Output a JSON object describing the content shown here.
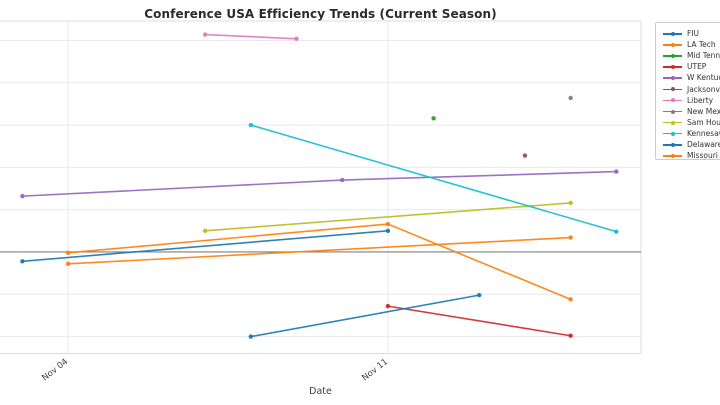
{
  "chart_data": {
    "type": "line",
    "title": "Conference USA Efficiency Trends (Current Season)",
    "xlabel": "Date",
    "ylabel": "",
    "x_axis": {
      "unit": "days_from_nov_04",
      "min": -1.49,
      "max": 12.54,
      "ticks": [
        {
          "day": 0,
          "label": "Nov 04"
        },
        {
          "day": 7,
          "label": "Nov 11"
        }
      ]
    },
    "y_axis": {
      "min": -12.0,
      "max": 27.3,
      "gridline_step": 5,
      "tick_labels_visible": false,
      "zero_line": true,
      "note": "y tick labels are cropped out of the visible image; values estimated from gridlines"
    },
    "grid": "on",
    "legend_position": "right-outside-partially-cut-off",
    "series": [
      {
        "name": "FIU",
        "color": "#1f77b4",
        "points": [
          {
            "date": "Nov 03",
            "x": -1,
            "y": -1.1
          },
          {
            "date": "Nov 11",
            "x": 7,
            "y": 2.5
          }
        ]
      },
      {
        "name": "LA Tech",
        "color": "#ff7f0e",
        "points": [
          {
            "date": "Nov 04",
            "x": 0,
            "y": -0.1
          },
          {
            "date": "Nov 11",
            "x": 7,
            "y": 3.3
          },
          {
            "date": "Nov 15",
            "x": 11,
            "y": -5.6
          }
        ]
      },
      {
        "name": "Mid Tennessee",
        "color": "#2ca02c",
        "points": [
          {
            "date": "Nov 12",
            "x": 8,
            "y": 15.8
          }
        ]
      },
      {
        "name": "UTEP",
        "color": "#d62728",
        "points": [
          {
            "date": "Nov 11",
            "x": 7,
            "y": -6.4
          },
          {
            "date": "Nov 15",
            "x": 11,
            "y": -9.9
          }
        ]
      },
      {
        "name": "W Kentucky",
        "color": "#9467bd",
        "points": [
          {
            "date": "Nov 03",
            "x": -1,
            "y": 6.6
          },
          {
            "date": "Nov 10",
            "x": 6,
            "y": 8.5
          },
          {
            "date": "Nov 16",
            "x": 12,
            "y": 9.5
          }
        ]
      },
      {
        "name": "Jacksonville St",
        "color": "#8c564b",
        "points": [
          {
            "date": "Nov 14",
            "x": 10,
            "y": 11.4
          }
        ]
      },
      {
        "name": "Liberty",
        "color": "#e377c2",
        "points": [
          {
            "date": "Nov 07",
            "x": 3,
            "y": 25.7
          },
          {
            "date": "Nov 09",
            "x": 5,
            "y": 25.2
          }
        ]
      },
      {
        "name": "New Mexico St",
        "color": "#7f7f7f",
        "points": [
          {
            "date": "Nov 15",
            "x": 11,
            "y": 18.2
          }
        ]
      },
      {
        "name": "Sam Houston",
        "color": "#bcbd22",
        "points": [
          {
            "date": "Nov 07",
            "x": 3,
            "y": 2.5
          },
          {
            "date": "Nov 15",
            "x": 11,
            "y": 5.8
          }
        ]
      },
      {
        "name": "Kennesaw St",
        "color": "#17becf",
        "points": [
          {
            "date": "Nov 08",
            "x": 4,
            "y": 15.0
          },
          {
            "date": "Nov 16",
            "x": 12,
            "y": 2.4
          }
        ]
      },
      {
        "name": "Delaware",
        "color": "#1f77b4",
        "points": [
          {
            "date": "Nov 08",
            "x": 4,
            "y": -10.0
          },
          {
            "date": "Nov 13",
            "x": 9,
            "y": -5.1
          }
        ]
      },
      {
        "name": "Missouri St",
        "color": "#ff7f0e",
        "points": [
          {
            "date": "Nov 04",
            "x": 0,
            "y": -1.4
          },
          {
            "date": "Nov 15",
            "x": 11,
            "y": 1.7
          }
        ]
      }
    ]
  },
  "colors": {
    "gridline": "#e9e9ec",
    "spine": "#dcdcdc",
    "zero_line": "#7f7f7f",
    "title_text": "#2b2b2b",
    "tick_text": "#3d3d3d",
    "legend_border": "#cccccc"
  }
}
